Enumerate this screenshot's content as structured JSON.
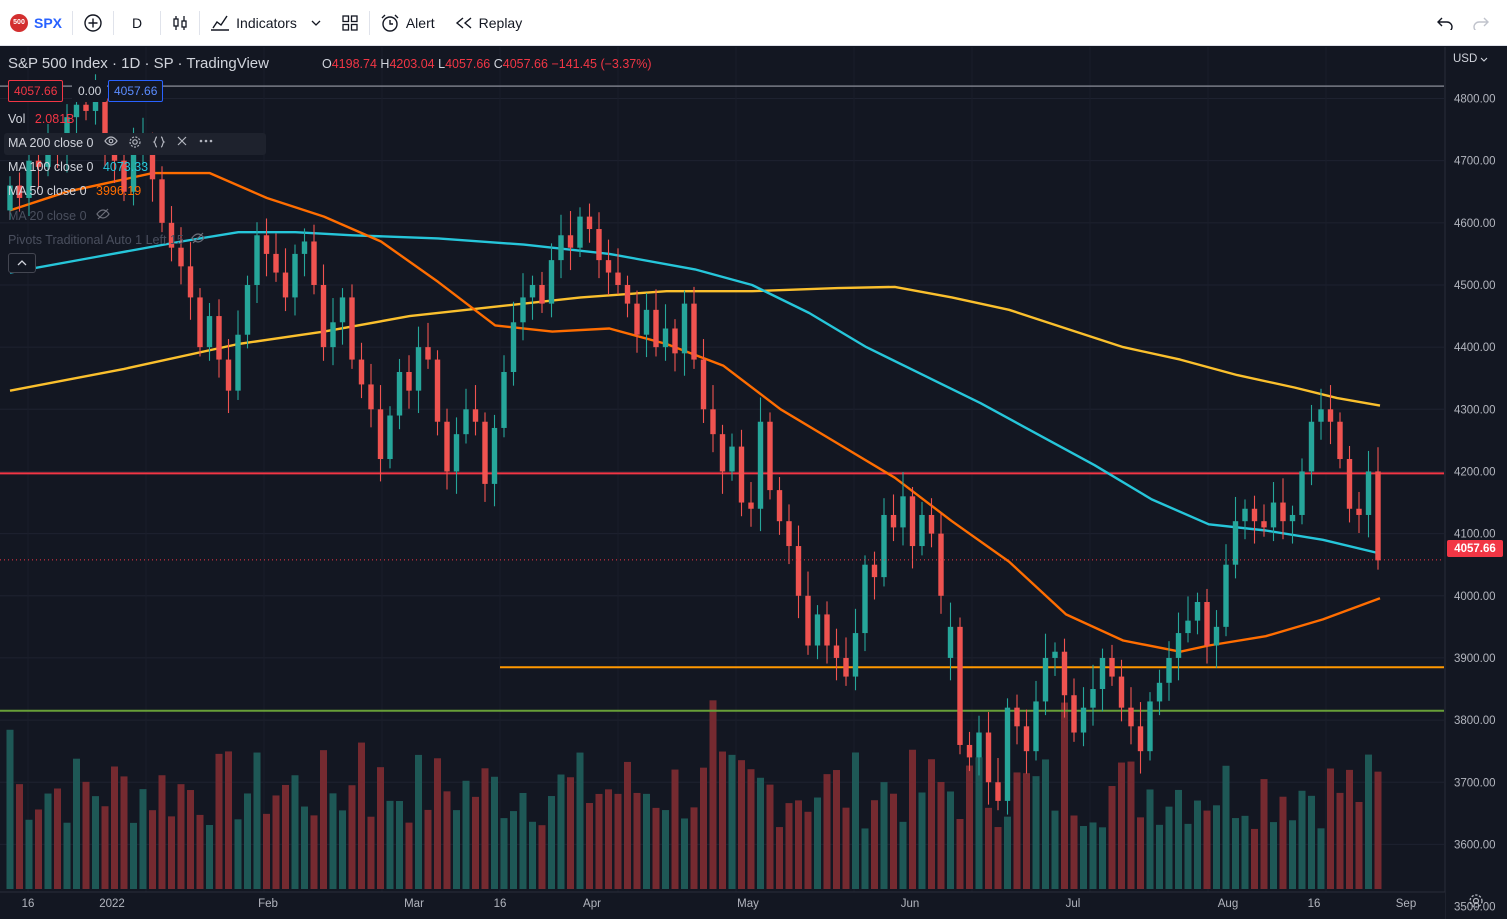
{
  "toolbar": {
    "logo_text": "500",
    "symbol": "SPX",
    "interval": "D",
    "indicators_label": "Indicators",
    "alert_label": "Alert",
    "replay_label": "Replay"
  },
  "legend": {
    "title": "S&P 500 Index · 1D · SP · TradingView",
    "ohlc": {
      "o_key": "O",
      "o_val": "4198.74",
      "h_key": "H",
      "h_val": "4203.04",
      "l_key": "L",
      "l_val": "4057.66",
      "c_key": "C",
      "c_val": "4057.66",
      "change": "−141.45 (−3.37%)"
    },
    "bid": "4057.66",
    "spread": "0.00",
    "ask": "4057.66"
  },
  "indicators": [
    {
      "label": "Vol",
      "value": "2.081B",
      "color": "#f23645"
    },
    {
      "label": "MA 200 close 0",
      "value": "",
      "color": "#d1d4dc"
    },
    {
      "label": "MA 100 close 0",
      "value": "4073.33",
      "color": "#26c6da"
    },
    {
      "label": "MA 50 close 0",
      "value": "3996.19",
      "color": "#ff6d00"
    },
    {
      "label": "MA 20 close 0",
      "value": "",
      "color": "#4a4f5e"
    },
    {
      "label": "Pivots Traditional Auto 1 Left 15",
      "value": "",
      "color": "#4a4f5e"
    }
  ],
  "price_axis": {
    "currency": "USD",
    "last_price": "4057.66",
    "ticks": [
      "4800.00",
      "4700.00",
      "4600.00",
      "4500.00",
      "4400.00",
      "4300.00",
      "4200.00",
      "4100.00",
      "4000.00",
      "3900.00",
      "3800.00",
      "3700.00",
      "3600.00",
      "3500.00"
    ]
  },
  "time_axis": {
    "labels": [
      "16",
      "2022",
      "Feb",
      "Mar",
      "16",
      "Apr",
      "May",
      "Jun",
      "Jul",
      "Aug",
      "16",
      "Sep"
    ]
  },
  "colors": {
    "up": "#26a69a",
    "down": "#ef5350",
    "ma200": "#fbc02d",
    "ma100": "#26c6da",
    "ma50": "#ff6d00",
    "level_red": "#f23645",
    "level_orange": "#ff9800",
    "level_green": "#689f38",
    "level_bright_green": "#4caf50",
    "level_grey": "#787b86"
  },
  "chart_data": {
    "type": "candlestick",
    "title": "S&P 500 Index · 1D · SP · TradingView",
    "ylim": [
      3480,
      4870
    ],
    "x_range": [
      "2021-12-10",
      "2022-09-08"
    ],
    "horizontal_levels": [
      4820,
      4197,
      3885,
      3815,
      3500
    ],
    "ma200": [
      [
        0,
        4330
      ],
      [
        40,
        4365
      ],
      [
        80,
        4405
      ],
      [
        110,
        4425
      ],
      [
        140,
        4450
      ],
      [
        170,
        4465
      ],
      [
        200,
        4480
      ],
      [
        230,
        4490
      ],
      [
        260,
        4490
      ],
      [
        290,
        4495
      ],
      [
        310,
        4497
      ],
      [
        330,
        4480
      ],
      [
        350,
        4460
      ],
      [
        370,
        4430
      ],
      [
        390,
        4400
      ],
      [
        410,
        4380
      ],
      [
        430,
        4355
      ],
      [
        450,
        4335
      ],
      [
        465,
        4318
      ],
      [
        480,
        4306
      ]
    ],
    "ma100": [
      [
        0,
        4520
      ],
      [
        30,
        4545
      ],
      [
        60,
        4570
      ],
      [
        80,
        4585
      ],
      [
        100,
        4585
      ],
      [
        120,
        4580
      ],
      [
        150,
        4575
      ],
      [
        180,
        4565
      ],
      [
        210,
        4550
      ],
      [
        240,
        4525
      ],
      [
        260,
        4500
      ],
      [
        280,
        4455
      ],
      [
        300,
        4400
      ],
      [
        320,
        4355
      ],
      [
        340,
        4310
      ],
      [
        360,
        4260
      ],
      [
        380,
        4210
      ],
      [
        400,
        4155
      ],
      [
        420,
        4115
      ],
      [
        440,
        4105
      ],
      [
        460,
        4090
      ],
      [
        480,
        4068
      ]
    ],
    "ma50": [
      [
        0,
        4620
      ],
      [
        20,
        4650
      ],
      [
        50,
        4680
      ],
      [
        70,
        4680
      ],
      [
        90,
        4640
      ],
      [
        110,
        4610
      ],
      [
        130,
        4570
      ],
      [
        150,
        4505
      ],
      [
        170,
        4435
      ],
      [
        190,
        4425
      ],
      [
        210,
        4430
      ],
      [
        230,
        4405
      ],
      [
        250,
        4370
      ],
      [
        270,
        4300
      ],
      [
        290,
        4245
      ],
      [
        310,
        4190
      ],
      [
        330,
        4120
      ],
      [
        350,
        4055
      ],
      [
        370,
        3970
      ],
      [
        390,
        3928
      ],
      [
        410,
        3910
      ],
      [
        420,
        3920
      ],
      [
        440,
        3935
      ],
      [
        460,
        3962
      ],
      [
        480,
        3996
      ]
    ],
    "candles": [
      [
        4620,
        4660
      ],
      [
        4660,
        4640
      ],
      [
        4640,
        4700
      ],
      [
        4700,
        4690
      ],
      [
        4690,
        4720
      ],
      [
        4720,
        4710
      ],
      [
        4710,
        4770
      ],
      [
        4770,
        4790
      ],
      [
        4790,
        4780
      ],
      [
        4780,
        4800
      ],
      [
        4800,
        4720
      ],
      [
        4720,
        4700
      ],
      [
        4700,
        4650
      ],
      [
        4650,
        4720
      ],
      [
        4720,
        4730
      ],
      [
        4730,
        4670
      ],
      [
        4670,
        4600
      ],
      [
        4600,
        4560
      ],
      [
        4560,
        4530
      ],
      [
        4530,
        4480
      ],
      [
        4480,
        4400
      ],
      [
        4400,
        4450
      ],
      [
        4450,
        4380
      ],
      [
        4380,
        4330
      ],
      [
        4330,
        4420
      ],
      [
        4420,
        4500
      ],
      [
        4500,
        4580
      ],
      [
        4580,
        4550
      ],
      [
        4550,
        4520
      ],
      [
        4520,
        4480
      ],
      [
        4480,
        4550
      ],
      [
        4550,
        4570
      ],
      [
        4570,
        4500
      ],
      [
        4500,
        4400
      ],
      [
        4400,
        4440
      ],
      [
        4440,
        4480
      ],
      [
        4480,
        4380
      ],
      [
        4380,
        4340
      ],
      [
        4340,
        4300
      ],
      [
        4300,
        4220
      ],
      [
        4220,
        4290
      ],
      [
        4290,
        4360
      ],
      [
        4360,
        4330
      ],
      [
        4330,
        4400
      ],
      [
        4400,
        4380
      ],
      [
        4380,
        4280
      ],
      [
        4280,
        4200
      ],
      [
        4200,
        4260
      ],
      [
        4260,
        4300
      ],
      [
        4300,
        4280
      ],
      [
        4280,
        4180
      ],
      [
        4180,
        4270
      ],
      [
        4270,
        4360
      ],
      [
        4360,
        4440
      ],
      [
        4440,
        4480
      ],
      [
        4480,
        4500
      ],
      [
        4500,
        4470
      ],
      [
        4470,
        4540
      ],
      [
        4540,
        4580
      ],
      [
        4580,
        4560
      ],
      [
        4560,
        4610
      ],
      [
        4610,
        4590
      ],
      [
        4590,
        4540
      ],
      [
        4540,
        4520
      ],
      [
        4520,
        4500
      ],
      [
        4500,
        4470
      ],
      [
        4470,
        4420
      ],
      [
        4420,
        4460
      ],
      [
        4460,
        4400
      ],
      [
        4400,
        4430
      ],
      [
        4430,
        4390
      ],
      [
        4390,
        4470
      ],
      [
        4470,
        4380
      ],
      [
        4380,
        4300
      ],
      [
        4300,
        4260
      ],
      [
        4260,
        4200
      ],
      [
        4200,
        4240
      ],
      [
        4240,
        4150
      ],
      [
        4150,
        4140
      ],
      [
        4140,
        4280
      ],
      [
        4280,
        4170
      ],
      [
        4170,
        4120
      ],
      [
        4120,
        4080
      ],
      [
        4080,
        4000
      ],
      [
        4000,
        3920
      ],
      [
        3920,
        3970
      ],
      [
        3970,
        3920
      ],
      [
        3920,
        3900
      ],
      [
        3900,
        3870
      ],
      [
        3870,
        3940
      ],
      [
        3940,
        4050
      ],
      [
        4050,
        4030
      ],
      [
        4030,
        4130
      ],
      [
        4130,
        4110
      ],
      [
        4110,
        4160
      ],
      [
        4160,
        4080
      ],
      [
        4080,
        4130
      ],
      [
        4130,
        4100
      ],
      [
        4100,
        4000
      ],
      [
        3900,
        3950
      ],
      [
        3950,
        3760
      ],
      [
        3760,
        3740
      ],
      [
        3740,
        3780
      ],
      [
        3780,
        3700
      ],
      [
        3700,
        3670
      ],
      [
        3670,
        3820
      ],
      [
        3820,
        3790
      ],
      [
        3790,
        3750
      ],
      [
        3750,
        3830
      ],
      [
        3830,
        3900
      ],
      [
        3900,
        3910
      ],
      [
        3910,
        3840
      ],
      [
        3840,
        3780
      ],
      [
        3780,
        3820
      ],
      [
        3820,
        3850
      ],
      [
        3850,
        3900
      ],
      [
        3900,
        3870
      ],
      [
        3870,
        3820
      ],
      [
        3820,
        3790
      ],
      [
        3790,
        3750
      ],
      [
        3750,
        3830
      ],
      [
        3830,
        3860
      ],
      [
        3860,
        3900
      ],
      [
        3900,
        3940
      ],
      [
        3940,
        3960
      ],
      [
        3960,
        3990
      ],
      [
        3990,
        3920
      ],
      [
        3920,
        3950
      ],
      [
        3950,
        4050
      ],
      [
        4050,
        4120
      ],
      [
        4120,
        4140
      ],
      [
        4140,
        4120
      ],
      [
        4120,
        4110
      ],
      [
        4110,
        4150
      ],
      [
        4150,
        4120
      ],
      [
        4120,
        4130
      ],
      [
        4130,
        4200
      ],
      [
        4200,
        4280
      ],
      [
        4280,
        4300
      ],
      [
        4300,
        4280
      ],
      [
        4280,
        4220
      ],
      [
        4220,
        4140
      ],
      [
        4140,
        4130
      ],
      [
        4130,
        4200
      ],
      [
        4200,
        4057
      ]
    ]
  }
}
